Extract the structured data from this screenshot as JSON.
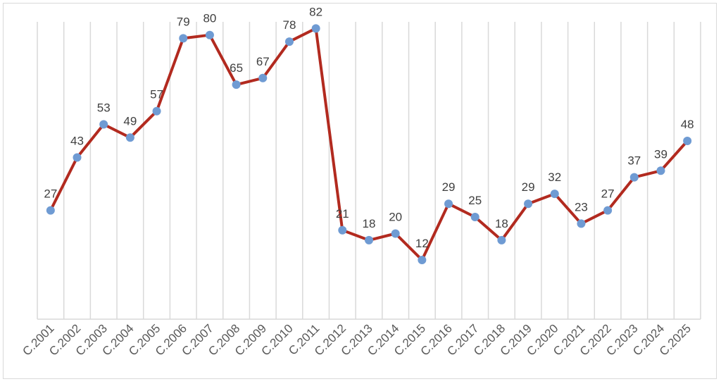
{
  "chart_data": {
    "type": "line",
    "categories": [
      "C.2001",
      "C.2002",
      "C.2003",
      "C.2004",
      "C.2005",
      "C.2006",
      "C.2007",
      "C.2008",
      "C.2009",
      "C.2010",
      "C.2011",
      "C.2012",
      "C.2013",
      "C.2014",
      "C.2015",
      "C.2016",
      "C.2017",
      "C.2018",
      "C.2019",
      "C.2020",
      "C.2021",
      "C.2022",
      "C.2023",
      "C.2024",
      "C.2025"
    ],
    "series": [
      {
        "values": [
          27,
          43,
          53,
          49,
          57,
          79,
          80,
          65,
          67,
          78,
          82,
          21,
          18,
          20,
          12,
          29,
          25,
          18,
          29,
          32,
          23,
          27,
          37,
          39,
          48
        ]
      }
    ],
    "title": "",
    "xlabel": "",
    "ylabel": "",
    "ylim": [
      0,
      90
    ],
    "grid": "vertical",
    "legend": "none",
    "colors": {
      "line": "#b22a1f",
      "marker": "#6f9bd3",
      "grid": "#d9d9d9",
      "label": "#404040",
      "tick": "#595959"
    }
  }
}
